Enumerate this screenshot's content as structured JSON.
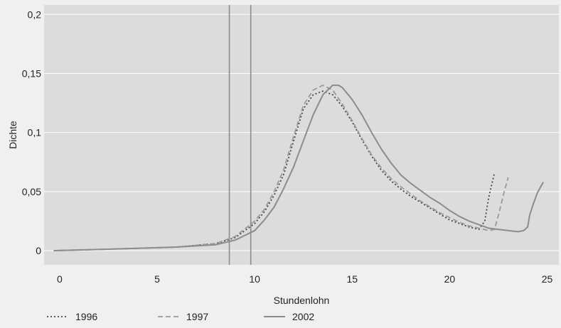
{
  "chart_data": {
    "type": "line",
    "title": "",
    "xlabel": "Stundenlohn",
    "ylabel": "Dichte",
    "xlim": [
      -0.8,
      25.6
    ],
    "ylim": [
      -0.012,
      0.208
    ],
    "x_ticks": [
      {
        "value": 0,
        "label": "0"
      },
      {
        "value": 5,
        "label": "5"
      },
      {
        "value": 10,
        "label": "10"
      },
      {
        "value": 15,
        "label": "15"
      },
      {
        "value": 20,
        "label": "20"
      },
      {
        "value": 25,
        "label": "25"
      }
    ],
    "y_ticks": [
      {
        "value": 0,
        "label": "0"
      },
      {
        "value": 0.05,
        "label": "0,05"
      },
      {
        "value": 0.1,
        "label": "0,1"
      },
      {
        "value": 0.15,
        "label": "0,15"
      },
      {
        "value": 0.2,
        "label": "0,2"
      }
    ],
    "grid": true,
    "reference_lines_x": [
      8.7,
      9.8
    ],
    "legend_position": "bottom-left",
    "series": [
      {
        "name": "1996",
        "style": "dotted",
        "color": "#444444",
        "points": [
          [
            -0.3,
            0
          ],
          [
            2,
            0.001
          ],
          [
            4,
            0.002
          ],
          [
            6,
            0.003
          ],
          [
            8,
            0.006
          ],
          [
            9,
            0.011
          ],
          [
            10,
            0.023
          ],
          [
            10.5,
            0.033
          ],
          [
            11,
            0.047
          ],
          [
            11.5,
            0.065
          ],
          [
            12,
            0.093
          ],
          [
            12.5,
            0.12
          ],
          [
            13,
            0.132
          ],
          [
            13.5,
            0.135
          ],
          [
            14,
            0.132
          ],
          [
            14.5,
            0.122
          ],
          [
            15,
            0.109
          ],
          [
            15.5,
            0.094
          ],
          [
            16,
            0.08
          ],
          [
            16.5,
            0.068
          ],
          [
            17,
            0.059
          ],
          [
            17.5,
            0.052
          ],
          [
            18,
            0.046
          ],
          [
            18.5,
            0.041
          ],
          [
            19,
            0.036
          ],
          [
            19.5,
            0.031
          ],
          [
            20,
            0.026
          ],
          [
            20.5,
            0.023
          ],
          [
            21,
            0.02
          ],
          [
            21.5,
            0.018
          ],
          [
            21.8,
            0.025
          ],
          [
            22,
            0.045
          ],
          [
            22.3,
            0.066
          ]
        ]
      },
      {
        "name": "1997",
        "style": "dashed",
        "color": "#9a9a9a",
        "points": [
          [
            -0.3,
            0
          ],
          [
            2,
            0.001
          ],
          [
            4,
            0.002
          ],
          [
            6,
            0.003
          ],
          [
            8,
            0.006
          ],
          [
            9,
            0.012
          ],
          [
            10,
            0.025
          ],
          [
            10.5,
            0.035
          ],
          [
            11,
            0.05
          ],
          [
            11.5,
            0.069
          ],
          [
            12,
            0.097
          ],
          [
            12.5,
            0.123
          ],
          [
            13,
            0.136
          ],
          [
            13.5,
            0.14
          ],
          [
            14,
            0.136
          ],
          [
            14.5,
            0.124
          ],
          [
            15,
            0.11
          ],
          [
            15.5,
            0.095
          ],
          [
            16,
            0.081
          ],
          [
            16.5,
            0.07
          ],
          [
            17,
            0.061
          ],
          [
            17.5,
            0.054
          ],
          [
            18,
            0.048
          ],
          [
            18.5,
            0.042
          ],
          [
            19,
            0.037
          ],
          [
            19.5,
            0.032
          ],
          [
            20,
            0.028
          ],
          [
            20.5,
            0.024
          ],
          [
            21,
            0.021
          ],
          [
            21.5,
            0.019
          ],
          [
            22,
            0.017
          ],
          [
            22.3,
            0.018
          ],
          [
            22.5,
            0.03
          ],
          [
            22.8,
            0.05
          ],
          [
            23,
            0.062
          ]
        ]
      },
      {
        "name": "2002",
        "style": "solid",
        "color": "#8c8c8c",
        "points": [
          [
            -0.3,
            0
          ],
          [
            2,
            0.001
          ],
          [
            4,
            0.002
          ],
          [
            6,
            0.003
          ],
          [
            8,
            0.005
          ],
          [
            9,
            0.009
          ],
          [
            10,
            0.017
          ],
          [
            10.5,
            0.026
          ],
          [
            11,
            0.037
          ],
          [
            11.5,
            0.053
          ],
          [
            12,
            0.071
          ],
          [
            12.5,
            0.093
          ],
          [
            13,
            0.115
          ],
          [
            13.5,
            0.132
          ],
          [
            14,
            0.14
          ],
          [
            14.3,
            0.14
          ],
          [
            14.5,
            0.138
          ],
          [
            15,
            0.128
          ],
          [
            15.5,
            0.115
          ],
          [
            16,
            0.1
          ],
          [
            16.5,
            0.086
          ],
          [
            17,
            0.074
          ],
          [
            17.5,
            0.064
          ],
          [
            18,
            0.057
          ],
          [
            18.5,
            0.051
          ],
          [
            19,
            0.045
          ],
          [
            19.5,
            0.04
          ],
          [
            20,
            0.034
          ],
          [
            20.5,
            0.029
          ],
          [
            21,
            0.025
          ],
          [
            21.5,
            0.022
          ],
          [
            22,
            0.019
          ],
          [
            22.5,
            0.018
          ],
          [
            23,
            0.017
          ],
          [
            23.5,
            0.016
          ],
          [
            23.8,
            0.017
          ],
          [
            24,
            0.02
          ],
          [
            24.1,
            0.03
          ],
          [
            24.3,
            0.04
          ],
          [
            24.5,
            0.049
          ],
          [
            24.8,
            0.058
          ]
        ]
      }
    ]
  }
}
